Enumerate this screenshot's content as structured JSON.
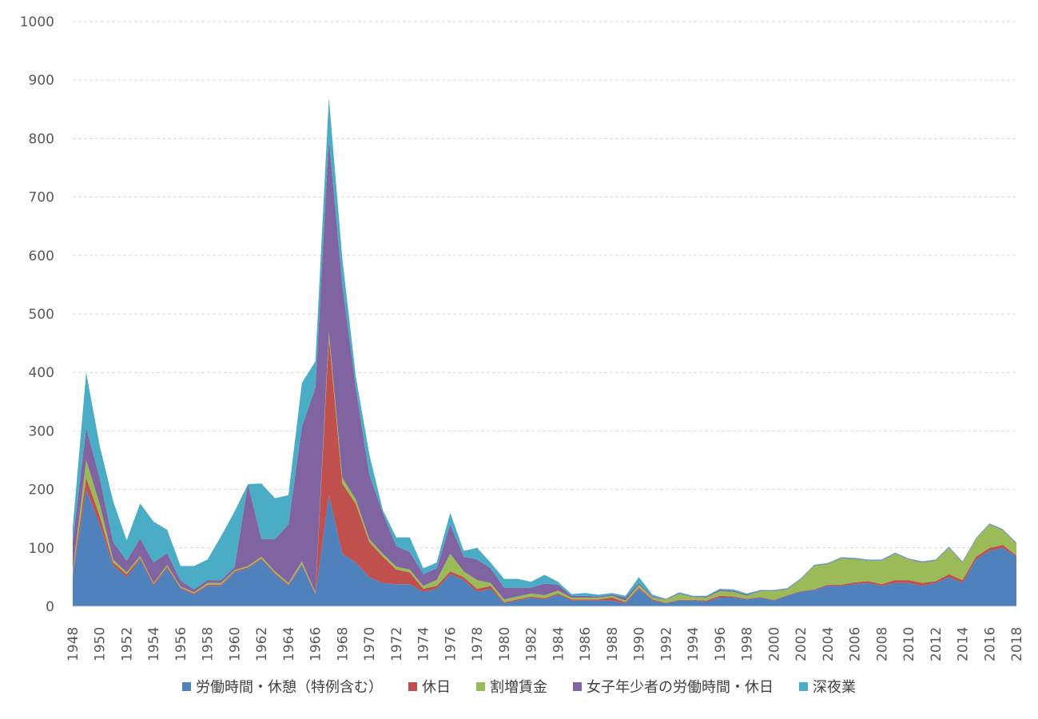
{
  "chart_data": {
    "type": "area",
    "stacked": true,
    "ylim": [
      0,
      1000
    ],
    "yticks": [
      "0",
      "100",
      "200",
      "300",
      "400",
      "500",
      "600",
      "700",
      "800",
      "900",
      "1000"
    ],
    "grid": true,
    "legend_position": "bottom",
    "x": [
      1948,
      1949,
      1950,
      1951,
      1952,
      1953,
      1954,
      1955,
      1956,
      1957,
      1958,
      1959,
      1960,
      1961,
      1962,
      1963,
      1964,
      1965,
      1966,
      1967,
      1968,
      1969,
      1970,
      1971,
      1972,
      1973,
      1974,
      1975,
      1976,
      1977,
      1978,
      1979,
      1980,
      1981,
      1982,
      1983,
      1984,
      1985,
      1986,
      1987,
      1988,
      1989,
      1990,
      1991,
      1992,
      1993,
      1994,
      1995,
      1996,
      1997,
      1998,
      1999,
      2000,
      2001,
      2002,
      2003,
      2004,
      2005,
      2006,
      2007,
      2008,
      2009,
      2010,
      2011,
      2012,
      2013,
      2014,
      2015,
      2016,
      2017,
      2018
    ],
    "xtick_labels": [
      "1948",
      "1950",
      "1952",
      "1954",
      "1956",
      "1958",
      "1960",
      "1962",
      "1964",
      "1966",
      "1968",
      "1970",
      "1972",
      "1974",
      "1976",
      "1978",
      "1980",
      "1982",
      "1984",
      "1986",
      "1988",
      "1990",
      "1992",
      "1994",
      "1996",
      "1998",
      "2000",
      "2002",
      "2004",
      "2006",
      "2008",
      "2010",
      "2012",
      "2014",
      "2016",
      "2018"
    ],
    "series": [
      {
        "name": "労働時間・休憩（特例含む）",
        "color": "#4f81bd",
        "values": [
          50,
          200,
          140,
          70,
          50,
          80,
          35,
          65,
          30,
          20,
          35,
          35,
          58,
          65,
          80,
          55,
          35,
          70,
          20,
          190,
          90,
          75,
          50,
          40,
          38,
          38,
          25,
          30,
          55,
          45,
          25,
          30,
          5,
          10,
          15,
          12,
          20,
          10,
          10,
          10,
          10,
          5,
          30,
          10,
          5,
          10,
          10,
          8,
          15,
          15,
          12,
          15,
          10,
          18,
          25,
          28,
          35,
          35,
          38,
          40,
          35,
          40,
          40,
          35,
          40,
          50,
          40,
          80,
          95,
          100,
          85
        ]
      },
      {
        "name": "休日",
        "color": "#c0504d",
        "values": [
          5,
          20,
          15,
          5,
          5,
          3,
          3,
          3,
          2,
          2,
          2,
          2,
          2,
          2,
          2,
          2,
          2,
          2,
          2,
          270,
          120,
          100,
          60,
          45,
          25,
          20,
          5,
          5,
          5,
          5,
          5,
          5,
          2,
          2,
          2,
          2,
          2,
          2,
          2,
          2,
          5,
          2,
          2,
          2,
          1,
          1,
          1,
          2,
          3,
          2,
          1,
          1,
          1,
          1,
          1,
          1,
          2,
          2,
          3,
          3,
          3,
          5,
          5,
          5,
          3,
          5,
          5,
          5,
          5,
          5,
          2
        ]
      },
      {
        "name": "割増賃金",
        "color": "#9bbb59",
        "values": [
          5,
          30,
          20,
          5,
          3,
          3,
          2,
          3,
          2,
          2,
          3,
          3,
          2,
          2,
          3,
          3,
          3,
          5,
          2,
          10,
          10,
          8,
          5,
          5,
          5,
          5,
          5,
          10,
          30,
          10,
          15,
          5,
          5,
          5,
          5,
          5,
          5,
          3,
          3,
          3,
          3,
          3,
          5,
          3,
          5,
          10,
          5,
          5,
          8,
          8,
          5,
          10,
          15,
          10,
          20,
          40,
          35,
          45,
          40,
          35,
          40,
          45,
          35,
          35,
          35,
          45,
          30,
          30,
          40,
          25,
          20
        ]
      },
      {
        "name": "女子年少者の労働時間・休日",
        "color": "#8064a2",
        "values": [
          50,
          55,
          45,
          30,
          20,
          30,
          35,
          20,
          10,
          5,
          5,
          5,
          5,
          140,
          30,
          55,
          100,
          230,
          350,
          330,
          330,
          190,
          110,
          70,
          35,
          30,
          20,
          20,
          50,
          25,
          35,
          25,
          20,
          15,
          10,
          20,
          10,
          3,
          3,
          2,
          2,
          5,
          3,
          2,
          1,
          1,
          1,
          2,
          2,
          2,
          2,
          1,
          1,
          1,
          1,
          1,
          1,
          1,
          1,
          1,
          1,
          1,
          1,
          1,
          1,
          1,
          1,
          1,
          1,
          1,
          1
        ]
      },
      {
        "name": "深夜業",
        "color": "#4bacc6",
        "values": [
          25,
          95,
          55,
          70,
          35,
          60,
          70,
          40,
          25,
          40,
          35,
          75,
          95,
          0,
          95,
          70,
          50,
          75,
          45,
          70,
          45,
          20,
          35,
          5,
          15,
          25,
          10,
          10,
          20,
          10,
          20,
          10,
          15,
          15,
          10,
          15,
          5,
          3,
          5,
          3,
          3,
          3,
          10,
          3,
          1,
          2,
          1,
          1,
          2,
          2,
          2,
          1,
          1,
          1,
          1,
          1,
          1,
          1,
          1,
          1,
          1,
          1,
          1,
          1,
          1,
          1,
          1,
          1,
          1,
          1,
          1
        ]
      }
    ]
  }
}
